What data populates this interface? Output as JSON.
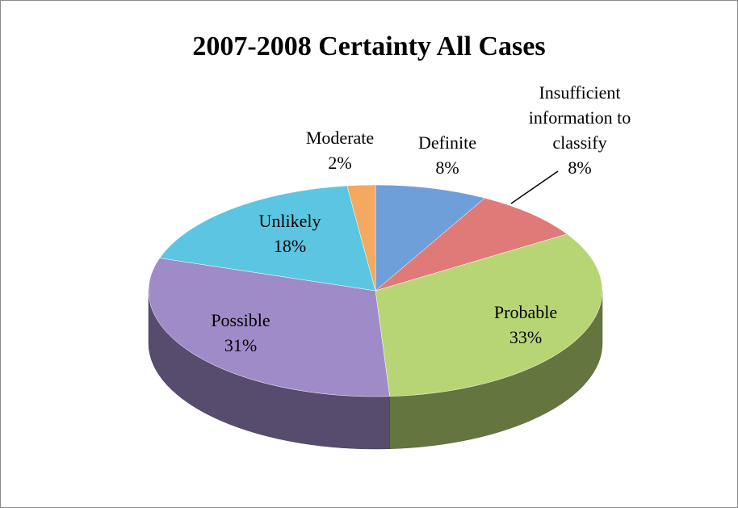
{
  "chart_data": {
    "type": "pie",
    "title": "2007-2008 Certainty All Cases",
    "categories": [
      "Definite",
      "Insufficient information to classify",
      "Probable",
      "Possible",
      "Unlikely",
      "Moderate"
    ],
    "values": [
      8,
      8,
      33,
      31,
      18,
      2
    ],
    "value_labels": [
      "8%",
      "8%",
      "33%",
      "31%",
      "18%",
      "2%"
    ],
    "colors": [
      "#6f9fd8",
      "#e07a78",
      "#b8d575",
      "#9f8bc8",
      "#5cc6e2",
      "#f4a860"
    ]
  }
}
